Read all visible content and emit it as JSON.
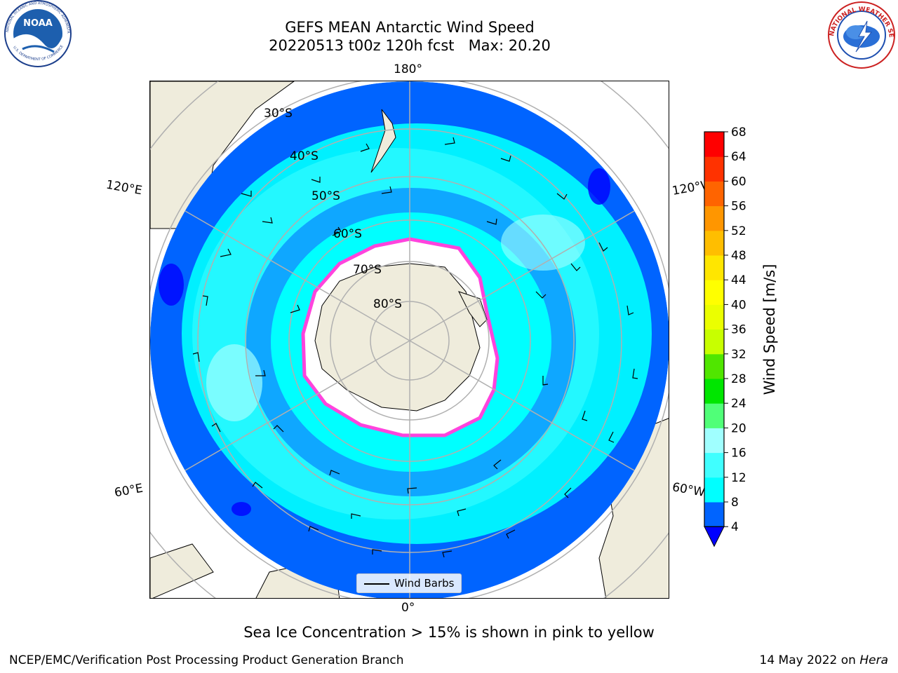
{
  "header": {
    "title_line1": "GEFS MEAN Antarctic Wind Speed",
    "title_line2": "20220513 t00z 120h fcst   Max: 20.20"
  },
  "logos": {
    "left": "noaa-logo",
    "left_text": "NOAA",
    "left_ring_text": "NATIONAL OCEANIC AND ATMOSPHERIC ADMINISTRATION",
    "left_bottom_text": "U.S. DEPARTMENT OF COMMERCE",
    "right": "nws-logo",
    "right_ring_text": "NATIONAL WEATHER SERVICE"
  },
  "map": {
    "projection": "south-polar-stereographic",
    "lon_labels": {
      "top": "180°",
      "bottom": "0°",
      "left_upper": "120°E",
      "left_lower": "60°E",
      "right_upper": "120°W",
      "right_lower": "60°W"
    },
    "lat_labels": [
      "30°S",
      "40°S",
      "50°S",
      "60°S",
      "70°S",
      "80°S"
    ],
    "colors": {
      "land": "#efecdc",
      "ice": "#ffffff",
      "ice_edge": "#ff44dd",
      "ice_edge_inner": "#ffcc00",
      "grid": "#b0b0b0"
    }
  },
  "legend": {
    "label": "Wind Barbs"
  },
  "colorbar": {
    "label": "Wind Speed [m/s]",
    "ticks": [
      "4",
      "8",
      "12",
      "16",
      "20",
      "24",
      "28",
      "32",
      "36",
      "40",
      "44",
      "48",
      "52",
      "56",
      "60",
      "64",
      "68"
    ],
    "colors": [
      "#0064ff",
      "#00ffff",
      "#40ffff",
      "#a0ffff",
      "#50ff78",
      "#00e600",
      "#50e600",
      "#c8ff00",
      "#ebff00",
      "#ffff00",
      "#ffe600",
      "#ffbe00",
      "#ff9600",
      "#ff6400",
      "#ff3200",
      "#ff0000"
    ],
    "under_color": "#0000ff"
  },
  "caption": "Sea Ice Concentration > 15% is shown in pink to yellow",
  "footer": {
    "left": "NCEP/EMC/Verification Post Processing Product Generation Branch",
    "right_date": "14 May 2022 on ",
    "right_host": "Hera"
  }
}
